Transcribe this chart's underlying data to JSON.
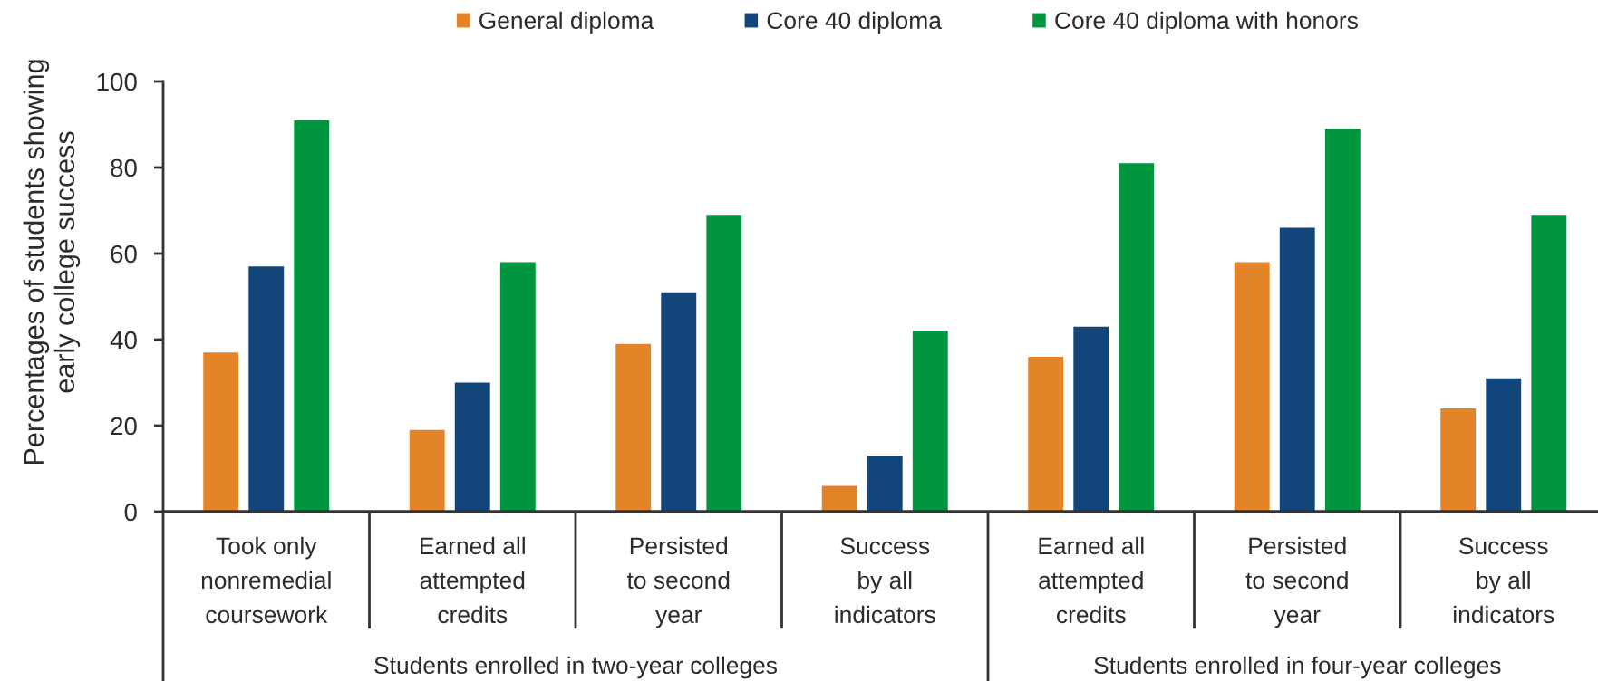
{
  "chart_data": {
    "type": "bar",
    "ylabel": "Percentages of students showing\nearly college success",
    "categories": [
      "Took only\nnonremedial\ncoursework",
      "Earned all\nattempted\ncredits",
      "Persisted\nto second\nyear",
      "Success\nby all\nindicators",
      "Earned all\nattempted\ncredits",
      "Persisted\nto second\nyear",
      "Success\nby all\nindicators"
    ],
    "series": [
      {
        "name": "General diploma",
        "color": "#e48428",
        "values": [
          37,
          19,
          39,
          6,
          36,
          58,
          24
        ]
      },
      {
        "name": "Core 40 diploma",
        "color": "#12467a",
        "values": [
          57,
          30,
          51,
          13,
          43,
          66,
          31
        ]
      },
      {
        "name": "Core 40 diploma with honors",
        "color": "#00963f",
        "values": [
          91,
          58,
          69,
          42,
          81,
          89,
          69
        ]
      }
    ],
    "ylim": [
      0,
      100
    ],
    "yticks": [
      0,
      20,
      40,
      60,
      80,
      100
    ],
    "legend": "top",
    "annotations": [
      "Students enrolled in two-year colleges",
      "Students enrolled in four-year colleges"
    ]
  }
}
